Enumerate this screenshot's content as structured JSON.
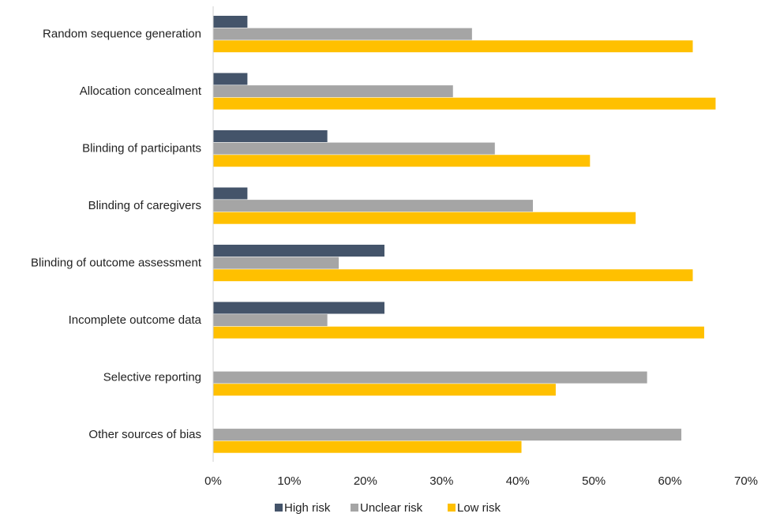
{
  "chart_data": {
    "type": "bar",
    "orientation": "horizontal",
    "categories": [
      "Random sequence generation",
      "Allocation concealment",
      "Blinding of participants",
      "Blinding of caregivers",
      "Blinding of outcome assessment",
      "Incomplete outcome data",
      "Selective reporting",
      "Other sources of bias"
    ],
    "series": [
      {
        "name": "High risk",
        "color": "#44546a",
        "values": [
          4.5,
          4.5,
          15,
          4.5,
          22.5,
          22.5,
          0,
          0
        ]
      },
      {
        "name": "Unclear risk",
        "color": "#a5a5a5",
        "values": [
          34,
          31.5,
          37,
          42,
          16.5,
          15,
          57,
          61.5
        ]
      },
      {
        "name": "Low risk",
        "color": "#ffc000",
        "values": [
          63,
          66,
          49.5,
          55.5,
          63,
          64.5,
          45,
          40.5
        ]
      }
    ],
    "xlim": [
      0,
      70
    ],
    "ticks": [
      0,
      10,
      20,
      30,
      40,
      50,
      60,
      70
    ],
    "tick_labels": [
      "0%",
      "10%",
      "20%",
      "30%",
      "40%",
      "50%",
      "60%",
      "70%"
    ],
    "grid": false,
    "legend": "bottom",
    "title": "",
    "xlabel": "",
    "ylabel": ""
  }
}
